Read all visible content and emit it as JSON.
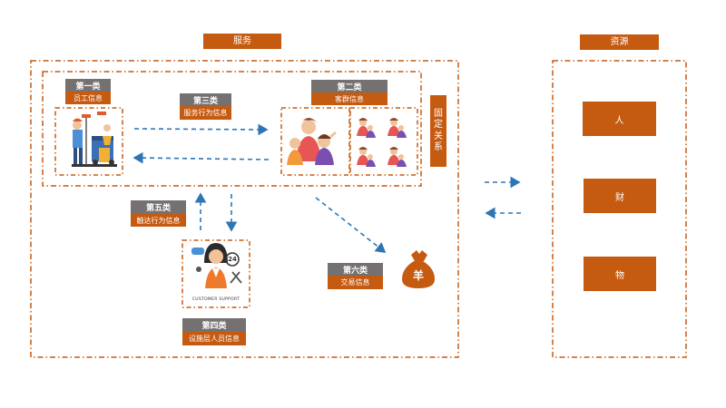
{
  "headers": {
    "service": "服务",
    "resource": "资源"
  },
  "categories": {
    "c1": {
      "top": "第一类",
      "bottom": "员工信息"
    },
    "c2": {
      "top": "第二类",
      "bottom": "客群信息"
    },
    "c3": {
      "top": "第三类",
      "bottom": "服务行为信息"
    },
    "c4": {
      "top": "第四类",
      "bottom": "设施层人员信息"
    },
    "c5": {
      "top": "第五类",
      "bottom": "触达行为信息"
    },
    "c6": {
      "top": "第六类",
      "bottom": "交易信息"
    }
  },
  "fixed_relation": [
    "固",
    "定",
    "关",
    "系"
  ],
  "resources": [
    "人",
    "财",
    "物"
  ],
  "icons": {
    "money_bag_symbol": "羊",
    "support_caption": "CUSTOMER SUPPORT",
    "support_badge": "24"
  },
  "colors": {
    "accent": "#c55a11",
    "label_gray": "#767171",
    "arrow_blue": "#2e75b6"
  }
}
